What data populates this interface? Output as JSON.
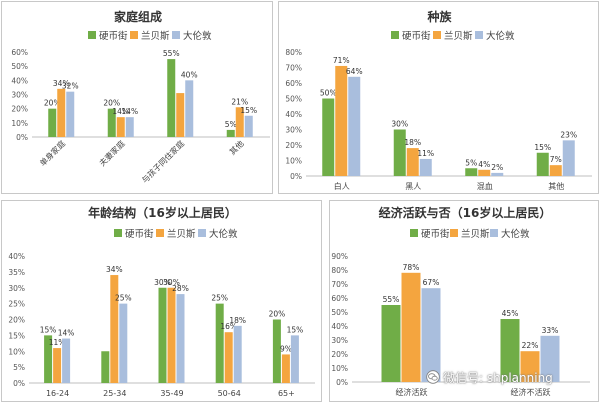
{
  "colors": {
    "series": [
      "#70ad47",
      "#f4a53f",
      "#a9bedd"
    ]
  },
  "chart_data": [
    {
      "type": "bar",
      "title": "家庭组成",
      "categories": [
        "单身家庭",
        "夫妻家庭",
        "与孩子同住家庭",
        "其他"
      ],
      "series": [
        {
          "name": "硬币街",
          "values": [
            20,
            20,
            55,
            5
          ]
        },
        {
          "name": "兰贝斯",
          "values": [
            34,
            14,
            31,
            21
          ]
        },
        {
          "name": "大伦敦",
          "values": [
            32,
            14,
            40,
            15
          ]
        }
      ],
      "ylim": [
        0,
        60
      ],
      "yticks": [
        "0%",
        "10%",
        "20%",
        "30%",
        "40%",
        "50%",
        "60%"
      ],
      "data_labels": [
        [
          "20%",
          "20%",
          "55%",
          "5%"
        ],
        [
          "34%",
          "14%",
          "",
          "21%"
        ],
        [
          "32%",
          "14%",
          "40%",
          "15%"
        ]
      ],
      "legend": "top",
      "grid": false
    },
    {
      "type": "bar",
      "title": "种族",
      "categories": [
        "白人",
        "黑人",
        "混血",
        "其他"
      ],
      "series": [
        {
          "name": "硬币街",
          "values": [
            50,
            30,
            5,
            15
          ]
        },
        {
          "name": "兰贝斯",
          "values": [
            71,
            18,
            4,
            7
          ]
        },
        {
          "name": "大伦敦",
          "values": [
            64,
            11,
            2,
            23
          ]
        }
      ],
      "ylim": [
        0,
        80
      ],
      "yticks": [
        "0%",
        "10%",
        "20%",
        "30%",
        "40%",
        "50%",
        "60%",
        "70%",
        "80%"
      ],
      "data_labels": [
        [
          "50%",
          "30%",
          "5%",
          "15%"
        ],
        [
          "71%",
          "18%",
          "4%",
          "7%"
        ],
        [
          "64%",
          "11%",
          "2%",
          "23%"
        ]
      ],
      "legend": "top",
      "grid": false
    },
    {
      "type": "bar",
      "title": "年龄结构（16岁以上居民）",
      "categories": [
        "16-24",
        "25-34",
        "35-49",
        "50-64",
        "65+"
      ],
      "series": [
        {
          "name": "硬币街",
          "values": [
            15,
            10,
            30,
            25,
            20
          ]
        },
        {
          "name": "兰贝斯",
          "values": [
            11,
            34,
            30,
            16,
            9
          ]
        },
        {
          "name": "大伦敦",
          "values": [
            14,
            25,
            28,
            18,
            15
          ]
        }
      ],
      "ylim": [
        0,
        40
      ],
      "yticks": [
        "0%",
        "5%",
        "10%",
        "15%",
        "20%",
        "25%",
        "30%",
        "35%",
        "40%"
      ],
      "data_labels": [
        [
          "15%",
          "",
          "30%",
          "25%",
          "20%"
        ],
        [
          "11%",
          "34%",
          "30%",
          "16%",
          "9%"
        ],
        [
          "14%",
          "25%",
          "28%",
          "18%",
          "15%"
        ]
      ],
      "legend": "top",
      "grid": false
    },
    {
      "type": "bar",
      "title": "经济活跃与否（16岁以上居民）",
      "categories": [
        "经济活跃",
        "经济不活跃"
      ],
      "series": [
        {
          "name": "硬币街",
          "values": [
            55,
            45
          ]
        },
        {
          "name": "兰贝斯",
          "values": [
            78,
            22
          ]
        },
        {
          "name": "大伦敦",
          "values": [
            67,
            33
          ]
        }
      ],
      "ylim": [
        0,
        90
      ],
      "yticks": [
        "0%",
        "10%",
        "20%",
        "30%",
        "40%",
        "50%",
        "60%",
        "70%",
        "80%",
        "90%"
      ],
      "data_labels": [
        [
          "55%",
          "45%"
        ],
        [
          "78%",
          "22%"
        ],
        [
          "67%",
          "33%"
        ]
      ],
      "legend": "top",
      "grid": false
    }
  ],
  "watermark": {
    "text": "微信号: shplanning",
    "icon": "wechat-icon"
  }
}
